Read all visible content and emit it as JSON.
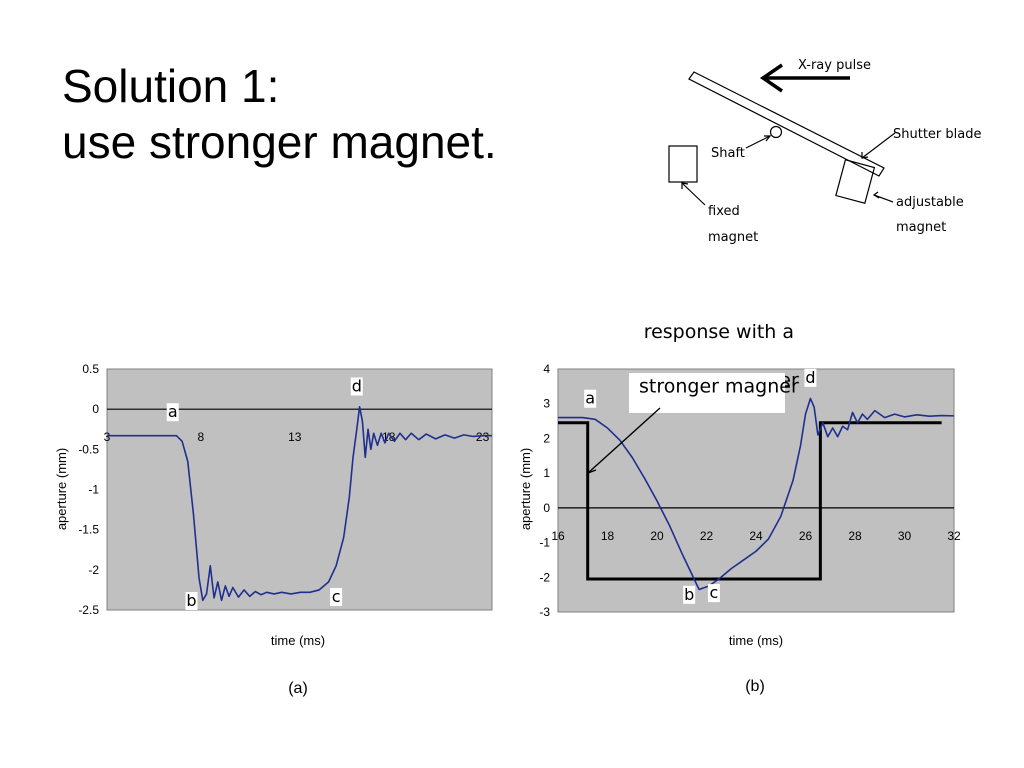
{
  "slide": {
    "title_line1": "Solution 1:",
    "title_line2": "use stronger magnet."
  },
  "diagram": {
    "xray_label": "X-ray pulse",
    "shaft_label": "Shaft",
    "blade_label": "Shutter blade",
    "fixed_magnet_label_1": "fixed",
    "fixed_magnet_label_2": "magnet",
    "adjustable_magnet_label_1": "adjustable",
    "adjustable_magnet_label_2": "magnet"
  },
  "colors": {
    "plot_bg": "#c0c0c0",
    "curve": "#1f2f8f",
    "square_wave": "#000000"
  },
  "chart_data": [
    {
      "type": "line",
      "xlabel": "time (ms)",
      "ylabel": "aperture (mm)",
      "caption": "(a)",
      "xlim": [
        3,
        23.5
      ],
      "ylim": [
        -2.5,
        0.5
      ],
      "xticks": [
        3,
        8,
        13,
        18,
        23
      ],
      "xtick_labels": [
        "3",
        "8",
        "13",
        "18",
        "23"
      ],
      "yticks": [
        0.5,
        0,
        -0.5,
        -1,
        -1.5,
        -2,
        -2.5
      ],
      "ytick_labels": [
        "0.5",
        "0",
        "-0.5",
        "-1",
        "-1.5",
        "-2",
        "-2.5"
      ],
      "grid": false,
      "zero_line": true,
      "series": [
        {
          "x": [
            3,
            4,
            5,
            6,
            6.7,
            7,
            7.3,
            7.6,
            7.9,
            8.1,
            8.3,
            8.5,
            8.7,
            8.9,
            9.1,
            9.3,
            9.5,
            9.7,
            10,
            10.3,
            10.6,
            10.9,
            11.2,
            11.5,
            11.9,
            12.3,
            12.8,
            13.3,
            13.8,
            14.3,
            14.8,
            15.2,
            15.6,
            15.9,
            16.1,
            16.3,
            16.45,
            16.6,
            16.75,
            16.9,
            17.05,
            17.2,
            17.4,
            17.6,
            17.8,
            18,
            18.3,
            18.6,
            18.9,
            19.2,
            19.6,
            20,
            20.5,
            21,
            21.5,
            22,
            22.5,
            23,
            23.5
          ],
          "y": [
            -0.33,
            -0.33,
            -0.33,
            -0.33,
            -0.33,
            -0.4,
            -0.65,
            -1.3,
            -2.1,
            -2.38,
            -2.3,
            -1.95,
            -2.35,
            -2.15,
            -2.38,
            -2.2,
            -2.33,
            -2.22,
            -2.34,
            -2.25,
            -2.33,
            -2.27,
            -2.31,
            -2.28,
            -2.3,
            -2.28,
            -2.3,
            -2.28,
            -2.28,
            -2.25,
            -2.15,
            -1.95,
            -1.6,
            -1.1,
            -0.6,
            -0.25,
            0.03,
            -0.15,
            -0.6,
            -0.25,
            -0.5,
            -0.3,
            -0.45,
            -0.3,
            -0.42,
            -0.3,
            -0.4,
            -0.3,
            -0.38,
            -0.3,
            -0.38,
            -0.31,
            -0.37,
            -0.32,
            -0.36,
            -0.32,
            -0.34,
            -0.33,
            -0.33
          ]
        }
      ],
      "annotations": [
        {
          "text": "a",
          "x": 6.5,
          "y": -0.1
        },
        {
          "text": "b",
          "x": 7.5,
          "y": -2.45
        },
        {
          "text": "c",
          "x": 15.2,
          "y": -2.4
        },
        {
          "text": "d",
          "x": 16.3,
          "y": 0.22
        }
      ]
    },
    {
      "type": "line",
      "xlabel": "time (ms)",
      "ylabel": "aperture (mm)",
      "caption": "(b)",
      "xlim": [
        16,
        32
      ],
      "ylim": [
        -3,
        4
      ],
      "xticks": [
        16,
        18,
        20,
        22,
        24,
        26,
        28,
        30,
        32
      ],
      "xtick_labels": [
        "16",
        "18",
        "20",
        "22",
        "24",
        "26",
        "28",
        "30",
        "32"
      ],
      "yticks": [
        4,
        3,
        2,
        1,
        0,
        -1,
        -2,
        -3
      ],
      "ytick_labels": [
        "4",
        "3",
        "2",
        "1",
        "0",
        "-1",
        "-2",
        "-3"
      ],
      "grid": false,
      "zero_line": true,
      "series": [
        {
          "x": [
            16,
            16.5,
            17,
            17.5,
            18,
            18.5,
            19,
            19.5,
            20,
            20.5,
            21,
            21.5,
            21.7,
            21.9,
            22.1,
            22.5,
            23,
            23.5,
            24,
            24.5,
            25,
            25.5,
            25.8,
            26,
            26.2,
            26.35,
            26.5,
            26.7,
            26.9,
            27.1,
            27.3,
            27.5,
            27.7,
            27.9,
            28.1,
            28.3,
            28.5,
            28.8,
            29.2,
            29.6,
            30,
            30.5,
            31,
            31.5,
            32
          ],
          "y": [
            2.6,
            2.6,
            2.6,
            2.55,
            2.3,
            1.95,
            1.45,
            0.85,
            0.2,
            -0.5,
            -1.3,
            -2.05,
            -2.35,
            -2.3,
            -2.25,
            -2.05,
            -1.75,
            -1.5,
            -1.25,
            -0.9,
            -0.25,
            0.8,
            1.8,
            2.7,
            3.15,
            2.9,
            2.1,
            2.45,
            2.05,
            2.3,
            2.05,
            2.35,
            2.25,
            2.75,
            2.45,
            2.7,
            2.55,
            2.8,
            2.6,
            2.7,
            2.62,
            2.68,
            2.64,
            2.66,
            2.65
          ]
        }
      ],
      "square_wave": {
        "x": [
          16,
          17.2,
          17.2,
          26.6,
          26.6,
          31.5
        ],
        "y": [
          2.45,
          2.45,
          -2.05,
          -2.05,
          2.45,
          2.45
        ]
      },
      "annotations": [
        {
          "text": "a",
          "x": 17.3,
          "y": 3.0
        },
        {
          "text": "b",
          "x": 21.3,
          "y": -2.65
        },
        {
          "text": "c",
          "x": 22.3,
          "y": -2.6
        },
        {
          "text": "d",
          "x": 26.2,
          "y": 3.6
        },
        {
          "text": "response with a",
          "x": 22.5,
          "y": 4.9
        },
        {
          "text": "stronger magner",
          "x": 22.5,
          "y": 3.5
        }
      ]
    }
  ]
}
